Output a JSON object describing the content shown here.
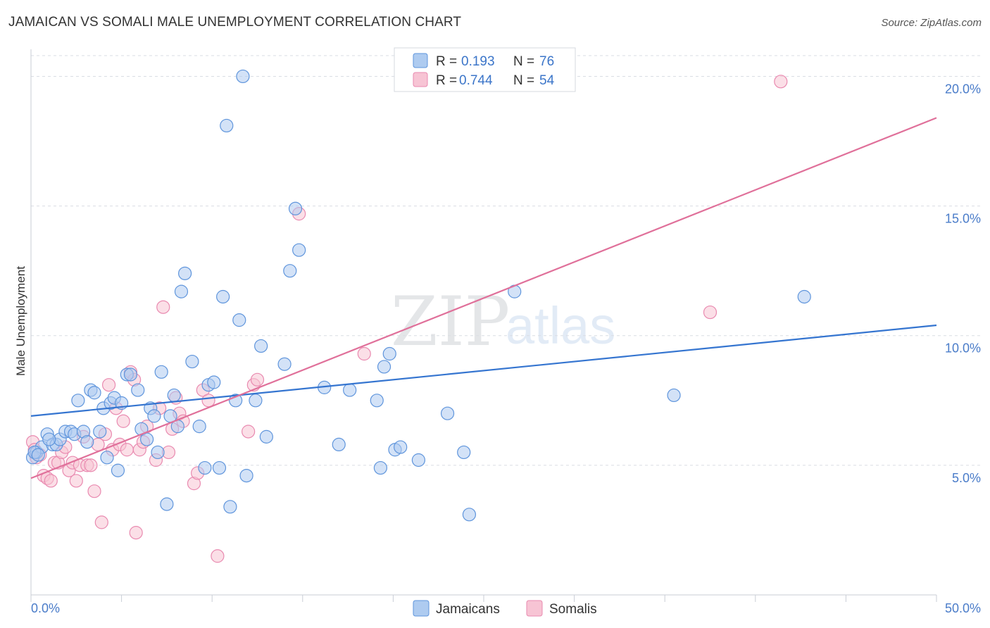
{
  "header": {
    "title": "JAMAICAN VS SOMALI MALE UNEMPLOYMENT CORRELATION CHART",
    "source": "Source: ZipAtlas.com"
  },
  "watermark": {
    "zip": "ZIP",
    "atlas": "atlas"
  },
  "legend": {
    "rows": [
      {
        "r_label": "R =",
        "r_value": "0.193",
        "n_label": "N =",
        "n_value": "76"
      },
      {
        "r_label": "R =",
        "r_value": "0.744",
        "n_label": "N =",
        "n_value": "54"
      }
    ]
  },
  "colors": {
    "jamaican_fill": "#aecbf0",
    "jamaican_stroke": "#5f95dc",
    "jamaican_line": "#3575d0",
    "somali_fill": "#f7c4d4",
    "somali_stroke": "#e98ab0",
    "somali_line": "#e0709a",
    "grid": "#d9dde3",
    "tick_text": "#4a7cc9"
  },
  "chart_data": {
    "type": "scatter",
    "title": "JAMAICAN VS SOMALI MALE UNEMPLOYMENT CORRELATION CHART",
    "xlabel": "",
    "ylabel": "Male Unemployment",
    "xlim": [
      0,
      50
    ],
    "ylim": [
      0,
      20.8
    ],
    "x_tick_labels": [
      "0.0%",
      "50.0%"
    ],
    "y_ticks": [
      5,
      10,
      15,
      20
    ],
    "y_tick_labels": [
      "5.0%",
      "10.0%",
      "15.0%",
      "20.0%"
    ],
    "grid": true,
    "legend_position": "top-center",
    "series": [
      {
        "name": "Jamaicans",
        "r": 0.193,
        "n": 76,
        "trend": {
          "x": [
            0,
            50
          ],
          "y": [
            6.9,
            10.4
          ]
        },
        "points": [
          [
            0.1,
            5.3
          ],
          [
            0.3,
            5.5
          ],
          [
            0.6,
            5.7
          ],
          [
            0.9,
            6.2
          ],
          [
            1.2,
            5.8
          ],
          [
            1.4,
            5.8
          ],
          [
            1.6,
            6.0
          ],
          [
            1.9,
            6.3
          ],
          [
            2.2,
            6.3
          ],
          [
            2.4,
            6.2
          ],
          [
            2.6,
            7.5
          ],
          [
            2.9,
            6.3
          ],
          [
            3.1,
            5.9
          ],
          [
            3.3,
            7.9
          ],
          [
            3.5,
            7.8
          ],
          [
            3.8,
            6.3
          ],
          [
            4.0,
            7.2
          ],
          [
            4.2,
            5.3
          ],
          [
            4.4,
            7.4
          ],
          [
            4.6,
            7.6
          ],
          [
            4.8,
            4.8
          ],
          [
            5.0,
            7.4
          ],
          [
            5.3,
            8.5
          ],
          [
            5.5,
            8.5
          ],
          [
            5.9,
            7.9
          ],
          [
            6.1,
            6.4
          ],
          [
            6.4,
            6.0
          ],
          [
            6.6,
            7.2
          ],
          [
            6.8,
            6.9
          ],
          [
            7.0,
            5.5
          ],
          [
            7.2,
            8.6
          ],
          [
            7.5,
            3.5
          ],
          [
            7.7,
            6.9
          ],
          [
            7.9,
            7.7
          ],
          [
            8.1,
            6.5
          ],
          [
            8.3,
            11.7
          ],
          [
            8.5,
            12.4
          ],
          [
            8.9,
            9.0
          ],
          [
            9.3,
            6.5
          ],
          [
            9.6,
            4.9
          ],
          [
            9.8,
            8.1
          ],
          [
            10.1,
            8.2
          ],
          [
            10.4,
            4.9
          ],
          [
            10.6,
            11.5
          ],
          [
            10.8,
            18.1
          ],
          [
            11.0,
            3.4
          ],
          [
            11.3,
            7.5
          ],
          [
            11.5,
            10.6
          ],
          [
            11.7,
            20.0
          ],
          [
            11.9,
            4.6
          ],
          [
            12.4,
            7.5
          ],
          [
            12.7,
            9.6
          ],
          [
            13.0,
            6.1
          ],
          [
            14.0,
            8.9
          ],
          [
            14.3,
            12.5
          ],
          [
            14.6,
            14.9
          ],
          [
            14.8,
            13.3
          ],
          [
            16.2,
            8.0
          ],
          [
            17.0,
            5.8
          ],
          [
            17.6,
            7.9
          ],
          [
            19.1,
            7.5
          ],
          [
            19.3,
            4.9
          ],
          [
            19.5,
            8.8
          ],
          [
            19.8,
            9.3
          ],
          [
            20.1,
            5.6
          ],
          [
            20.4,
            5.7
          ],
          [
            21.4,
            5.2
          ],
          [
            23.0,
            7.0
          ],
          [
            23.9,
            5.5
          ],
          [
            24.2,
            3.1
          ],
          [
            26.7,
            11.7
          ],
          [
            35.5,
            7.7
          ],
          [
            42.7,
            11.5
          ],
          [
            0.2,
            5.5
          ],
          [
            0.4,
            5.4
          ],
          [
            1.0,
            6.0
          ]
        ]
      },
      {
        "name": "Somalis",
        "r": 0.744,
        "n": 54,
        "trend": {
          "x": [
            0,
            50
          ],
          "y": [
            4.5,
            18.4
          ]
        },
        "points": [
          [
            0.1,
            5.9
          ],
          [
            0.3,
            5.3
          ],
          [
            0.5,
            5.4
          ],
          [
            0.7,
            4.6
          ],
          [
            0.9,
            4.5
          ],
          [
            1.1,
            4.4
          ],
          [
            1.3,
            5.1
          ],
          [
            1.5,
            5.1
          ],
          [
            1.7,
            5.5
          ],
          [
            1.9,
            5.7
          ],
          [
            2.1,
            4.8
          ],
          [
            2.3,
            5.1
          ],
          [
            2.5,
            4.4
          ],
          [
            2.7,
            5.0
          ],
          [
            2.9,
            6.1
          ],
          [
            3.1,
            5.0
          ],
          [
            3.3,
            5.0
          ],
          [
            3.5,
            4.0
          ],
          [
            3.7,
            5.8
          ],
          [
            3.9,
            2.8
          ],
          [
            4.1,
            6.2
          ],
          [
            4.3,
            8.1
          ],
          [
            4.5,
            5.6
          ],
          [
            4.7,
            7.2
          ],
          [
            4.9,
            5.8
          ],
          [
            5.1,
            6.7
          ],
          [
            5.3,
            5.6
          ],
          [
            5.5,
            8.6
          ],
          [
            5.7,
            8.3
          ],
          [
            5.8,
            2.4
          ],
          [
            6.0,
            5.6
          ],
          [
            6.2,
            5.9
          ],
          [
            6.4,
            6.5
          ],
          [
            6.9,
            5.2
          ],
          [
            7.1,
            7.2
          ],
          [
            7.3,
            11.1
          ],
          [
            7.6,
            5.5
          ],
          [
            7.8,
            6.4
          ],
          [
            8.0,
            7.6
          ],
          [
            8.2,
            7.0
          ],
          [
            8.4,
            6.7
          ],
          [
            9.0,
            4.3
          ],
          [
            9.2,
            4.7
          ],
          [
            9.5,
            7.9
          ],
          [
            9.8,
            7.5
          ],
          [
            10.3,
            1.5
          ],
          [
            12.0,
            6.3
          ],
          [
            12.3,
            8.1
          ],
          [
            12.5,
            8.3
          ],
          [
            14.8,
            14.7
          ],
          [
            18.4,
            9.3
          ],
          [
            37.5,
            10.9
          ],
          [
            41.4,
            19.8
          ],
          [
            0.2,
            5.6
          ]
        ]
      }
    ]
  },
  "bottom_legend": {
    "items": [
      {
        "label": "Jamaicans"
      },
      {
        "label": "Somalis"
      }
    ]
  }
}
